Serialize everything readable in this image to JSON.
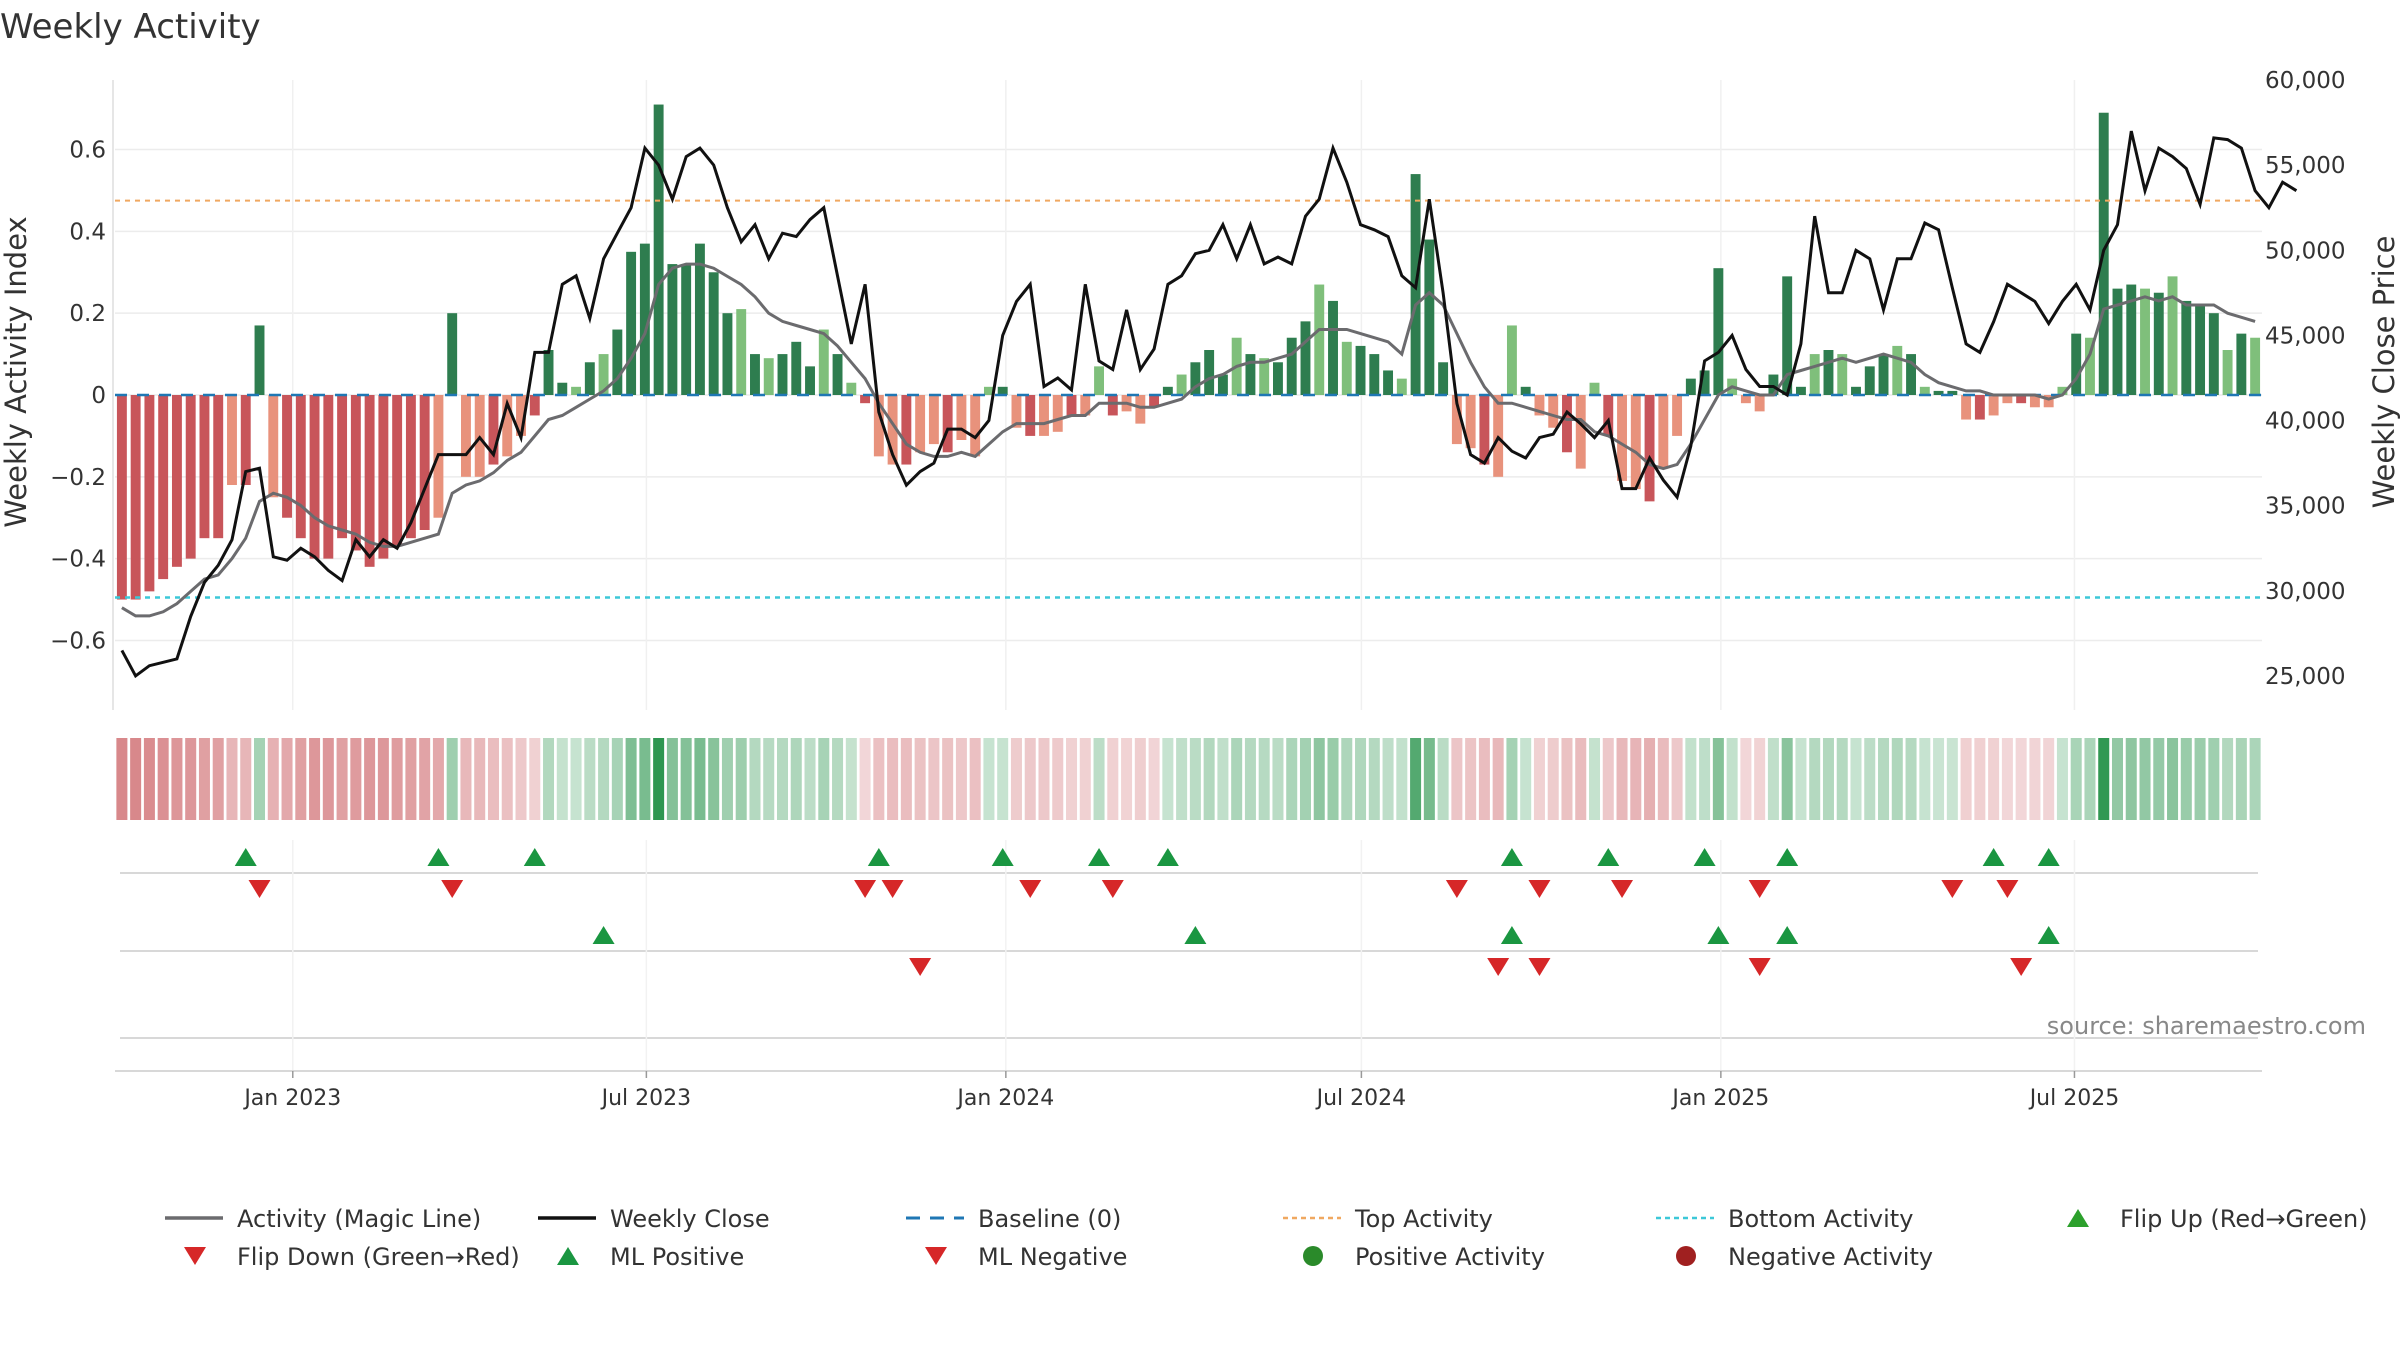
{
  "chart_data": {
    "type": "bar+line",
    "title": "Weekly Activity",
    "ylabel_left": "Weekly Activity Index",
    "ylabel_right": "Weekly Close Price",
    "ylim_left": [
      -0.77,
      0.77
    ],
    "yticks_left": [
      "0.6",
      "0.4",
      "0.2",
      "0",
      "−0.2",
      "−0.4",
      "−0.6"
    ],
    "ylim_right": [
      23000,
      60000
    ],
    "yticks_right": [
      "60,000",
      "55,000",
      "50,000",
      "45,000",
      "40,000",
      "35,000",
      "30,000",
      "25,000"
    ],
    "x_start": "2022-10-02",
    "x_end": "2025-10-05",
    "xticks": [
      "Jan 2023",
      "Jul 2023",
      "Jan 2024",
      "Jul 2024",
      "Jan 2025",
      "Jul 2025"
    ],
    "top_activity": 0.475,
    "bottom_activity": -0.495,
    "activity": [
      -0.5,
      -0.5,
      -0.48,
      -0.45,
      -0.42,
      -0.4,
      -0.35,
      -0.35,
      -0.22,
      -0.22,
      0.17,
      -0.25,
      -0.3,
      -0.35,
      -0.4,
      -0.4,
      -0.35,
      -0.38,
      -0.42,
      -0.4,
      -0.37,
      -0.35,
      -0.33,
      -0.3,
      0.2,
      -0.2,
      -0.2,
      -0.17,
      -0.15,
      -0.1,
      -0.05,
      0.11,
      0.03,
      0.02,
      0.08,
      0.1,
      0.16,
      0.35,
      0.37,
      0.71,
      0.32,
      0.32,
      0.37,
      0.3,
      0.2,
      0.21,
      0.1,
      0.09,
      0.1,
      0.13,
      0.07,
      0.16,
      0.1,
      0.03,
      -0.02,
      -0.15,
      -0.17,
      -0.17,
      -0.14,
      -0.12,
      -0.14,
      -0.11,
      -0.15,
      0.02,
      0.02,
      -0.08,
      -0.1,
      -0.1,
      -0.09,
      -0.05,
      -0.05,
      0.07,
      -0.05,
      -0.04,
      -0.07,
      -0.03,
      0.02,
      0.05,
      0.08,
      0.11,
      0.05,
      0.14,
      0.1,
      0.09,
      0.08,
      0.14,
      0.18,
      0.27,
      0.23,
      0.13,
      0.12,
      0.1,
      0.06,
      0.04,
      0.54,
      0.38,
      0.08,
      -0.12,
      -0.13,
      -0.17,
      -0.2,
      0.17,
      0.02,
      -0.05,
      -0.08,
      -0.14,
      -0.18,
      0.03,
      -0.1,
      -0.21,
      -0.23,
      -0.26,
      -0.18,
      -0.1,
      0.04,
      0.06,
      0.31,
      0.04,
      -0.02,
      -0.04,
      0.05,
      0.29,
      0.02,
      0.1,
      0.11,
      0.1,
      0.02,
      0.07,
      0.1,
      0.12,
      0.1,
      0.02,
      0.01,
      0.01,
      -0.06,
      -0.06,
      -0.05,
      -0.02,
      -0.02,
      -0.03,
      -0.03,
      0.02,
      0.15,
      0.14,
      0.69,
      0.26,
      0.27,
      0.26,
      0.25,
      0.29,
      0.23,
      0.22,
      0.2,
      0.11,
      0.15,
      0.14
    ],
    "magic_line": [
      -0.52,
      -0.54,
      -0.54,
      -0.53,
      -0.51,
      -0.48,
      -0.45,
      -0.44,
      -0.4,
      -0.35,
      -0.26,
      -0.24,
      -0.25,
      -0.27,
      -0.3,
      -0.32,
      -0.33,
      -0.34,
      -0.36,
      -0.37,
      -0.37,
      -0.36,
      -0.35,
      -0.34,
      -0.24,
      -0.22,
      -0.21,
      -0.19,
      -0.16,
      -0.14,
      -0.1,
      -0.06,
      -0.05,
      -0.03,
      -0.01,
      0.01,
      0.04,
      0.09,
      0.15,
      0.27,
      0.31,
      0.32,
      0.32,
      0.31,
      0.29,
      0.27,
      0.24,
      0.2,
      0.18,
      0.17,
      0.16,
      0.15,
      0.12,
      0.08,
      0.04,
      -0.02,
      -0.07,
      -0.12,
      -0.14,
      -0.15,
      -0.15,
      -0.14,
      -0.15,
      -0.12,
      -0.09,
      -0.07,
      -0.07,
      -0.07,
      -0.06,
      -0.05,
      -0.05,
      -0.02,
      -0.02,
      -0.02,
      -0.03,
      -0.03,
      -0.02,
      -0.01,
      0.02,
      0.04,
      0.05,
      0.07,
      0.08,
      0.08,
      0.09,
      0.1,
      0.13,
      0.16,
      0.16,
      0.16,
      0.15,
      0.14,
      0.13,
      0.1,
      0.22,
      0.25,
      0.22,
      0.15,
      0.08,
      0.02,
      -0.02,
      -0.02,
      -0.03,
      -0.04,
      -0.05,
      -0.06,
      -0.06,
      -0.09,
      -0.1,
      -0.12,
      -0.14,
      -0.17,
      -0.18,
      -0.17,
      -0.12,
      -0.06,
      0.0,
      0.02,
      0.01,
      0.0,
      0.0,
      0.05,
      0.06,
      0.07,
      0.08,
      0.09,
      0.08,
      0.09,
      0.1,
      0.09,
      0.08,
      0.05,
      0.03,
      0.02,
      0.01,
      0.01,
      0.0,
      0.0,
      0.0,
      0.0,
      -0.01,
      0.0,
      0.04,
      0.1,
      0.21,
      0.22,
      0.23,
      0.24,
      0.23,
      0.24,
      0.22,
      0.22,
      0.22,
      0.2,
      0.19,
      0.18
    ],
    "weekly_close": [
      26500,
      25000,
      25600,
      25800,
      26000,
      28500,
      30500,
      31500,
      33000,
      37000,
      37200,
      32000,
      31800,
      32500,
      32000,
      31200,
      30600,
      33000,
      32000,
      33000,
      32500,
      34000,
      36000,
      38000,
      38000,
      38000,
      39000,
      38000,
      41000,
      39000,
      44000,
      44000,
      48000,
      48500,
      46000,
      49500,
      51000,
      52500,
      56000,
      55000,
      53000,
      55500,
      56000,
      55000,
      52500,
      50500,
      51500,
      49500,
      51000,
      50800,
      51800,
      52500,
      48500,
      44500,
      48000,
      40500,
      38000,
      36200,
      37000,
      37500,
      39500,
      39500,
      39000,
      40000,
      45000,
      47000,
      48000,
      42000,
      42500,
      41800,
      48000,
      43500,
      43000,
      46500,
      43000,
      44200,
      48000,
      48500,
      49800,
      50000,
      51500,
      49500,
      51500,
      49200,
      49600,
      49200,
      52000,
      53000,
      56000,
      54000,
      51500,
      51200,
      50800,
      48500,
      47800,
      53000,
      47500,
      41000,
      38000,
      37500,
      39000,
      38200,
      37800,
      39000,
      39200,
      40500,
      39800,
      39000,
      40000,
      36000,
      36000,
      37800,
      36500,
      35500,
      38500,
      43500,
      44000,
      45000,
      43000,
      42000,
      42000,
      41500,
      44500,
      52000,
      47500,
      47500,
      50000,
      49500,
      46500,
      49500,
      49500,
      51600,
      51200,
      47800,
      44500,
      44000,
      45800,
      48000,
      47500,
      47000,
      45700,
      47000,
      48000,
      46500,
      50000,
      51500,
      57000,
      53500,
      56000,
      55500,
      54800,
      52700,
      56600,
      56500,
      56000,
      53500,
      52500,
      54000,
      53500
    ]
  },
  "flip_up_row": [
    9,
    23,
    30,
    55,
    64,
    71,
    76,
    101,
    108,
    115,
    121,
    136,
    140
  ],
  "flip_down_row": [
    10,
    24,
    54,
    56,
    66,
    72,
    97,
    103,
    109,
    119,
    133,
    137
  ],
  "ml_positive_row": [
    35,
    78,
    101,
    116,
    121,
    140
  ],
  "ml_negative_row": [
    58,
    100,
    103,
    119,
    138
  ],
  "source": "source: sharemaestro.com",
  "legend": [
    {
      "label": "Activity (Magic Line)",
      "symbol": "line",
      "color": "#6b6b6e"
    },
    {
      "label": "Weekly Close",
      "symbol": "line",
      "color": "#111111"
    },
    {
      "label": "Baseline (0)",
      "symbol": "dash",
      "color": "#1f77b4"
    },
    {
      "label": "Top Activity",
      "symbol": "dot",
      "color": "#f0a860"
    },
    {
      "label": "Bottom Activity",
      "symbol": "dot",
      "color": "#3cc8d8"
    },
    {
      "label": "Flip Up (Red→Green)",
      "symbol": "tri-up",
      "color": "#2ca02c"
    },
    {
      "label": "Flip Down (Green→Red)",
      "symbol": "tri-down",
      "color": "#d62728"
    },
    {
      "label": "ML Positive",
      "symbol": "tri-up",
      "color": "#1a9641"
    },
    {
      "label": "ML Negative",
      "symbol": "tri-down",
      "color": "#d62728"
    },
    {
      "label": "Positive Activity",
      "symbol": "circle",
      "color": "#2a8a2a"
    },
    {
      "label": "Negative Activity",
      "symbol": "circle",
      "color": "#a02020"
    }
  ],
  "colors": {
    "pos_strong": "#2e7d4f",
    "pos_light": "#7fbf7b",
    "neg_strong": "#c8555a",
    "neg_light": "#e8927c",
    "magic_line": "#6b6b6e",
    "close": "#111111",
    "baseline": "#1f77b4",
    "top": "#f0a860",
    "bottom": "#3cc8d8",
    "up": "#1a9641",
    "down": "#d62728"
  }
}
